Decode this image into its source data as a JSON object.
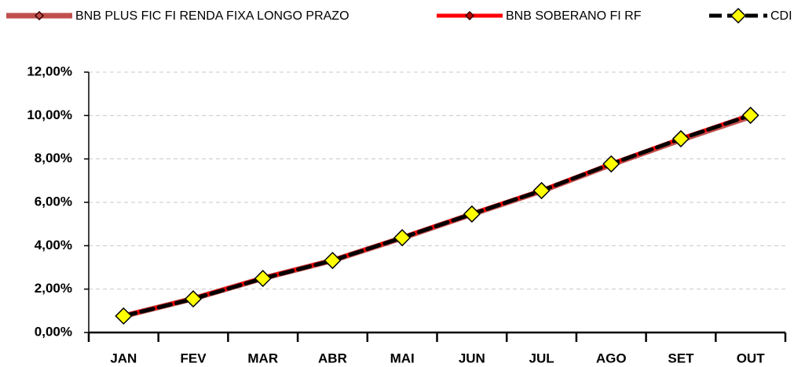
{
  "chart_data": {
    "type": "line",
    "categories": [
      "JAN",
      "FEV",
      "MAR",
      "ABR",
      "MAI",
      "JUN",
      "JUL",
      "AGO",
      "SET",
      "OUT"
    ],
    "series": [
      {
        "name": "BNB PLUS FIC FI RENDA FIXA LONGO PRAZO",
        "color": "#c0504d",
        "marker_fill": "#c0504d",
        "marker_stroke": "#3a0000",
        "dashed": false,
        "values": [
          0.76,
          1.56,
          2.5,
          3.32,
          4.36,
          5.45,
          6.52,
          7.74,
          8.88,
          9.95
        ]
      },
      {
        "name": "BNB SOBERANO FI RF",
        "color": "#ff0000",
        "marker_fill": "#c00000",
        "marker_stroke": "#3a0000",
        "dashed": false,
        "values": [
          0.77,
          1.57,
          2.51,
          3.33,
          4.38,
          5.47,
          6.55,
          7.78,
          8.94,
          10.03
        ]
      },
      {
        "name": "CDI",
        "color": "#000000",
        "marker_fill": "#ffff00",
        "marker_stroke": "#000000",
        "dashed": true,
        "values": [
          0.76,
          1.55,
          2.49,
          3.32,
          4.37,
          5.46,
          6.54,
          7.77,
          8.93,
          10.01
        ]
      }
    ],
    "ylim": [
      0,
      12
    ],
    "yticks": [
      {
        "value": 0,
        "label": "0,00%"
      },
      {
        "value": 2,
        "label": "2,00%"
      },
      {
        "value": 4,
        "label": "4,00%"
      },
      {
        "value": 6,
        "label": "6,00%"
      },
      {
        "value": 8,
        "label": "8,00%"
      },
      {
        "value": 10,
        "label": "10,00%"
      },
      {
        "value": 12,
        "label": "12,00%"
      }
    ],
    "grid": true,
    "legend": "top"
  }
}
